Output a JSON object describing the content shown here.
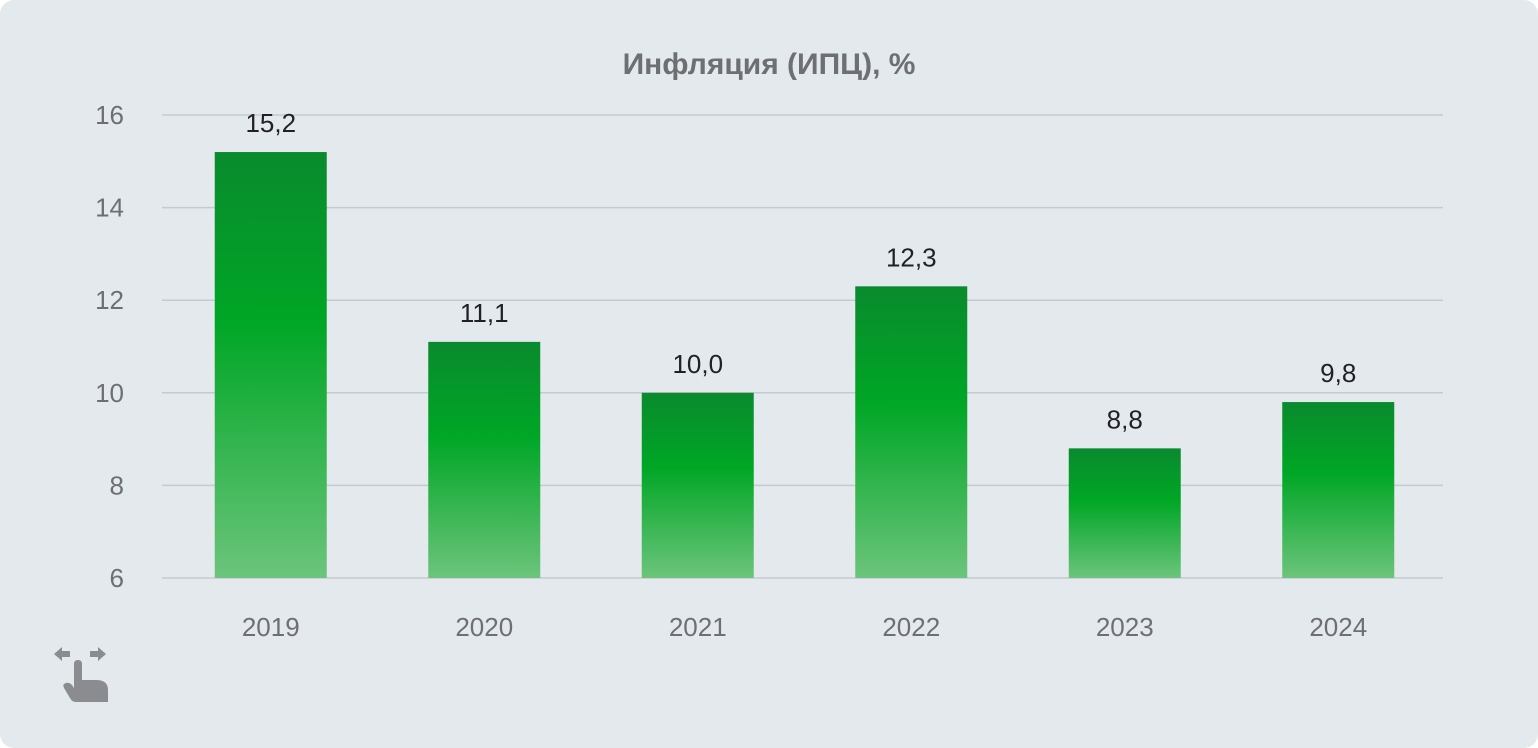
{
  "chart_data": {
    "type": "bar",
    "title": "Инфляция (ИПЦ), %",
    "categories": [
      "2019",
      "2020",
      "2021",
      "2022",
      "2023",
      "2024"
    ],
    "values": [
      15.2,
      11.1,
      10.0,
      12.3,
      8.8,
      9.8
    ],
    "value_labels": [
      "15,2",
      "11,1",
      "10,0",
      "12,3",
      "8,8",
      "9,8"
    ],
    "ylim": [
      6,
      16
    ],
    "yticks": [
      6,
      8,
      10,
      12,
      14,
      16
    ],
    "grid": true,
    "bar_gradient": [
      "#0a8a2e",
      "#00a626",
      "#6cc47c"
    ]
  },
  "icons": {
    "swipe": "swipe-horizontal-icon"
  },
  "colors": {
    "background": "#e4e9ed",
    "title": "#6d6f72",
    "grid": "#c5cacf"
  }
}
